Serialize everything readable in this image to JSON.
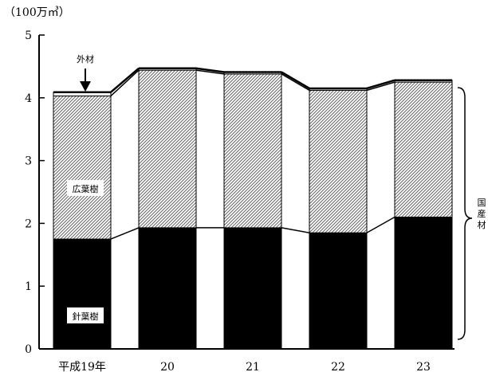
{
  "chart_data": {
    "type": "bar",
    "unit_label": "（100万㎥）",
    "categories": [
      "平成19年",
      "20",
      "21",
      "22",
      "23"
    ],
    "series": [
      {
        "name": "針葉樹",
        "values": [
          1.75,
          1.93,
          1.93,
          1.85,
          2.1
        ],
        "color": "#000000",
        "pattern": "solid"
      },
      {
        "name": "広葉樹",
        "values": [
          2.28,
          2.51,
          2.45,
          2.27,
          2.15
        ],
        "color": "#ffffff",
        "pattern": "hatch"
      },
      {
        "name": "外材",
        "values": [
          0.06,
          0.03,
          0.03,
          0.03,
          0.03
        ],
        "color": "#ffffff",
        "pattern": "none"
      }
    ],
    "bracket_label": "国産材",
    "yticks": [
      "0",
      "1",
      "2",
      "3",
      "4",
      "5"
    ],
    "ylim": [
      0,
      5
    ],
    "xlabel": "",
    "ylabel": ""
  }
}
